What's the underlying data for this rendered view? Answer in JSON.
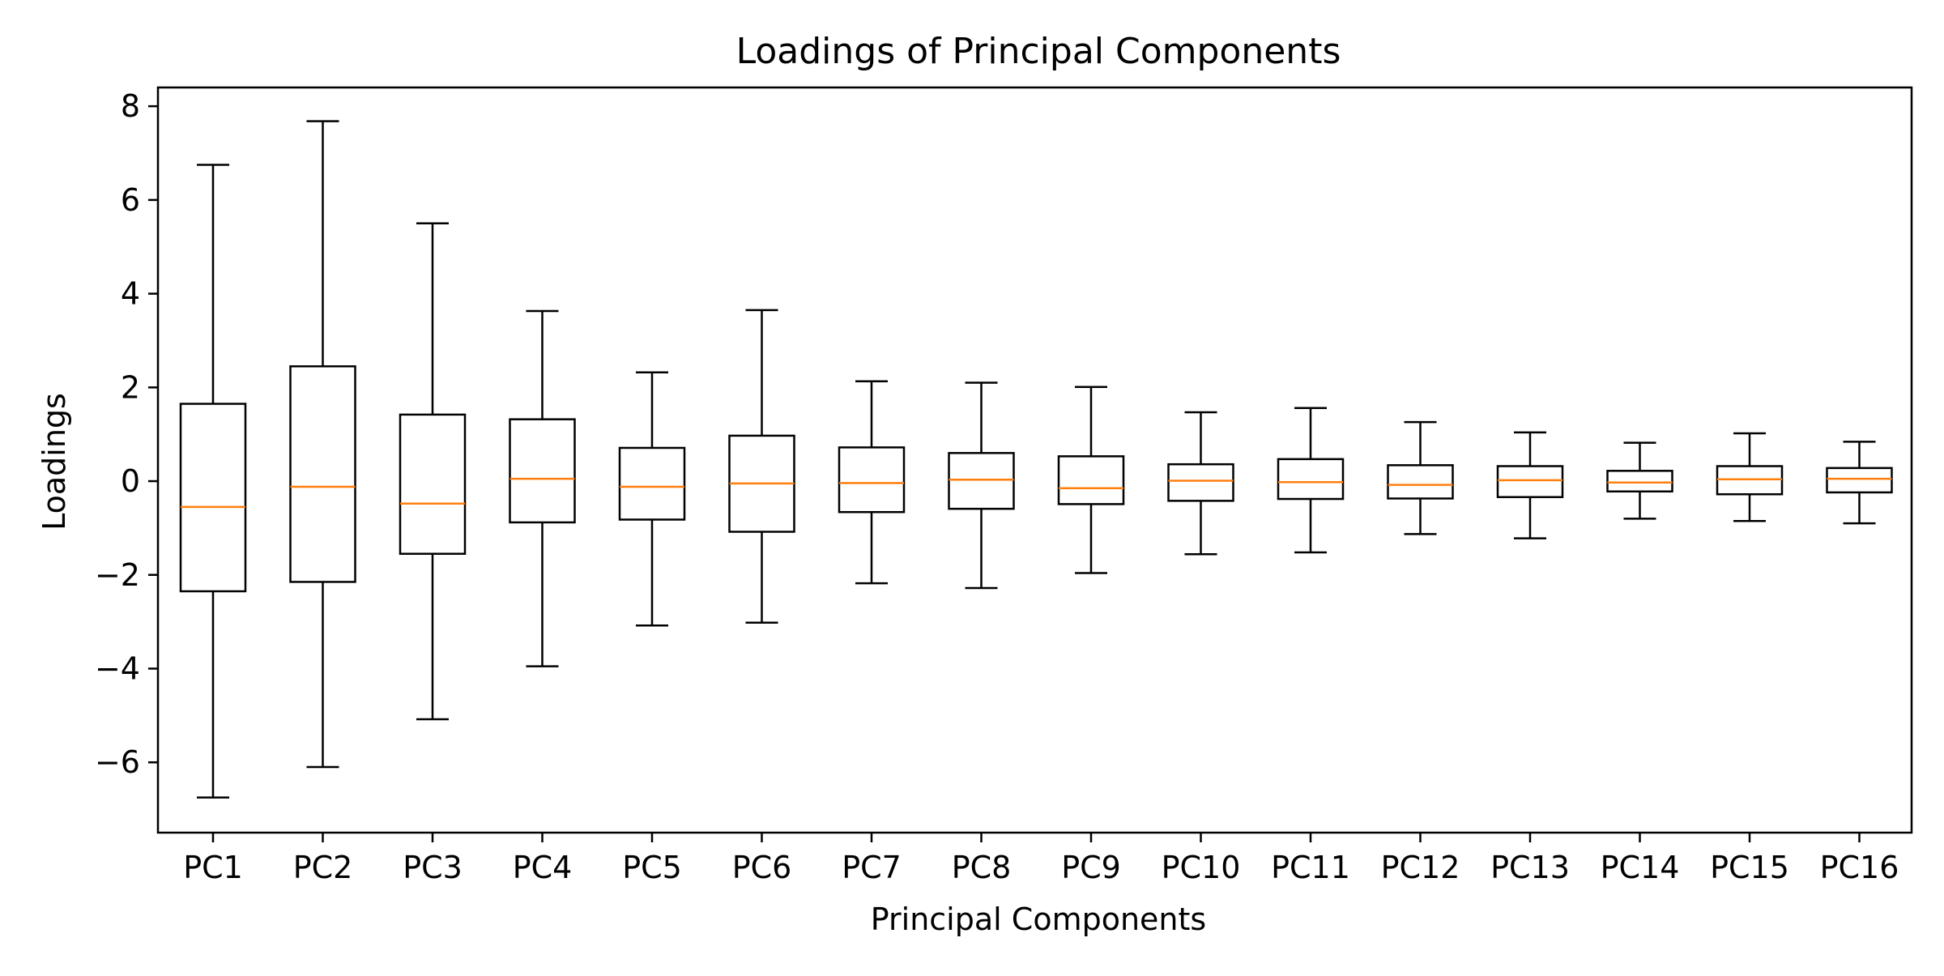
{
  "chart_data": {
    "type": "box",
    "title": "Loadings of Principal Components",
    "xlabel": "Principal Components",
    "ylabel": "Loadings",
    "ylim": [
      -7.5,
      8.4
    ],
    "yticks": [
      -6,
      -4,
      -2,
      0,
      2,
      4,
      6,
      8
    ],
    "ytick_labels": [
      "−6",
      "−4",
      "−2",
      "0",
      "2",
      "4",
      "6",
      "8"
    ],
    "grid": false,
    "legend": "none",
    "colors": {
      "box": "#000000",
      "median": "#ff7f0e",
      "axes": "#000000",
      "background": "#ffffff"
    },
    "categories": [
      "PC1",
      "PC2",
      "PC3",
      "PC4",
      "PC5",
      "PC6",
      "PC7",
      "PC8",
      "PC9",
      "PC10",
      "PC11",
      "PC12",
      "PC13",
      "PC14",
      "PC15",
      "PC16"
    ],
    "boxes": [
      {
        "whislo": -6.75,
        "q1": -2.35,
        "med": -0.55,
        "q3": 1.65,
        "whishi": 6.75
      },
      {
        "whislo": -6.1,
        "q1": -2.15,
        "med": -0.12,
        "q3": 2.45,
        "whishi": 7.68
      },
      {
        "whislo": -5.08,
        "q1": -1.55,
        "med": -0.48,
        "q3": 1.42,
        "whishi": 5.5
      },
      {
        "whislo": -3.95,
        "q1": -0.88,
        "med": 0.05,
        "q3": 1.32,
        "whishi": 3.63
      },
      {
        "whislo": -3.08,
        "q1": -0.82,
        "med": -0.12,
        "q3": 0.71,
        "whishi": 2.32
      },
      {
        "whislo": -3.02,
        "q1": -1.08,
        "med": -0.05,
        "q3": 0.97,
        "whishi": 3.65
      },
      {
        "whislo": -2.18,
        "q1": -0.66,
        "med": -0.04,
        "q3": 0.72,
        "whishi": 2.13
      },
      {
        "whislo": -2.28,
        "q1": -0.59,
        "med": 0.03,
        "q3": 0.6,
        "whishi": 2.1
      },
      {
        "whislo": -1.96,
        "q1": -0.49,
        "med": -0.15,
        "q3": 0.53,
        "whishi": 2.01
      },
      {
        "whislo": -1.56,
        "q1": -0.42,
        "med": 0.01,
        "q3": 0.36,
        "whishi": 1.47
      },
      {
        "whislo": -1.52,
        "q1": -0.38,
        "med": -0.02,
        "q3": 0.47,
        "whishi": 1.56
      },
      {
        "whislo": -1.13,
        "q1": -0.37,
        "med": -0.08,
        "q3": 0.34,
        "whishi": 1.26
      },
      {
        "whislo": -1.22,
        "q1": -0.34,
        "med": 0.02,
        "q3": 0.32,
        "whishi": 1.04
      },
      {
        "whislo": -0.8,
        "q1": -0.22,
        "med": -0.03,
        "q3": 0.22,
        "whishi": 0.82
      },
      {
        "whislo": -0.85,
        "q1": -0.28,
        "med": 0.04,
        "q3": 0.32,
        "whishi": 1.02
      },
      {
        "whislo": -0.9,
        "q1": -0.24,
        "med": 0.05,
        "q3": 0.28,
        "whishi": 0.84
      }
    ]
  }
}
